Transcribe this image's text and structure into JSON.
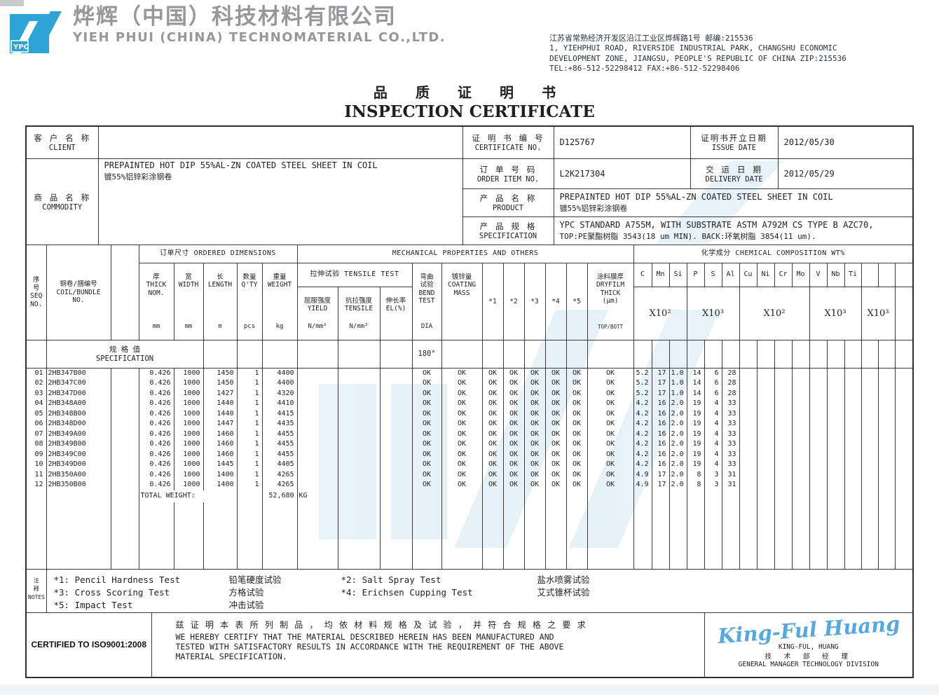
{
  "brand": {
    "logo_text": "YPC",
    "company_cn": "烨辉（中国）科技材料有限公司",
    "company_en": "YIEH PHUI (CHINA) TECHNOMATERIAL CO.,LTD.",
    "address_lines": [
      "江苏省常熟经济开发区沿江工业区烨辉路1号 邮编:215536",
      "1, YIEHPHUI ROAD, RIVERSIDE INDUSTRIAL PARK, CHANGSHU ECONOMIC",
      "DEVELOPMENT ZONE, JIANGSU, PEOPLE'S REPUBLIC OF CHINA ZIP:215536",
      "TEL:+86-512-52298412  FAX:+86-512-52298406"
    ]
  },
  "title": {
    "cn": "品 质 证 明 书",
    "en": "INSPECTION CERTIFICATE"
  },
  "info": {
    "client": {
      "cn": "客 户 名 称",
      "en": "CLIENT",
      "value": ""
    },
    "commodity": {
      "cn": "商 品 名 称",
      "en": "COMMODITY",
      "line1": "PREPAINTED HOT DIP 55%AL-ZN COATED STEEL SHEET IN COIL",
      "line2": "镀55%铝锌彩涂钢卷"
    },
    "certificate_no": {
      "cn": "证 明 书 编 号",
      "en": "CERTIFICATE NO.",
      "value": "D125767"
    },
    "issue_date": {
      "cn": "证明书开立日期",
      "en": "ISSUE DATE",
      "value": "2012/05/30"
    },
    "order_item_no": {
      "cn": "订 单 号 码",
      "en": "ORDER ITEM NO.",
      "value": "L2K217304"
    },
    "delivery_date": {
      "cn": "交 运 日 期",
      "en": "DELIVERY DATE",
      "value": "2012/05/29"
    },
    "product": {
      "cn": "产 品 名 称",
      "en": "PRODUCT",
      "line1": "PREPAINTED HOT DIP 55%AL-ZN COATED STEEL SHEET IN COIL",
      "line2": "镀55%铝锌彩涂钢卷"
    },
    "specification": {
      "cn": "产 品 规 格",
      "en": "SPECIFICATION",
      "line1": "YPC STANDARD A755M, WITH SUBSTRATE ASTM A792M CS TYPE B AZC70,",
      "line2": "TOP:PE聚酯树脂 3543(18 um MIN).  BACK:环氧树脂 3854(11 um)."
    }
  },
  "table": {
    "groups": {
      "ordered_dims": "订单尺寸 ORDERED DIMENSIONS",
      "mechanical": "MECHANICAL PROPERTIES AND OTHERS",
      "chemical": "化学成分 CHEMICAL COMPOSITION WT%",
      "tensile_test": "拉伸试验 TENSILE TEST"
    },
    "headers": {
      "seq": "序\n号\nSEQ\nNO.",
      "coil": "钢卷/捆编号\nCOIL/BUNDLE\nNO.",
      "thick": {
        "top": "厚\nTHICK\nNOM.",
        "unit": "mm"
      },
      "width": {
        "top": "宽\nWIDTH",
        "unit": "mm"
      },
      "length": {
        "top": "长\nLENGTH",
        "unit": "m"
      },
      "qty": {
        "top": "数量\nQ'TY",
        "unit": "pcs"
      },
      "weight": {
        "top": "重量\nWEIGHT",
        "unit": "kg"
      },
      "yield": {
        "top": "屈服强度\nYIELD",
        "unit": "N/mm²"
      },
      "tensile": {
        "top": "抗拉强度\nTENSILE",
        "unit": "N/mm²"
      },
      "el": {
        "top": "伸长率\nEL(%)",
        "unit": ""
      },
      "bend": {
        "top": "弯曲\n试验\nBEND\nTEST",
        "unit": "DIA"
      },
      "coating": {
        "top": "镀锌量\nCOATING\nMASS",
        "unit": ""
      },
      "stars": [
        "*1",
        "*2",
        "*3",
        "*4",
        "*5"
      ],
      "dryfilm": {
        "top": "涂料膜厚\nDRYFILM\nTHICK\n(μm)",
        "unit": "TOP/BOTT"
      }
    },
    "chem": {
      "elements": [
        "C",
        "Mn",
        "Si",
        "P",
        "S",
        "Al",
        "Cu",
        "Ni",
        "Cr",
        "Mo",
        "V",
        "Nb",
        "Ti",
        "",
        "",
        ""
      ],
      "multipliers": [
        {
          "span": 3,
          "label": "X10²"
        },
        {
          "span": 3,
          "label": "X10³"
        },
        {
          "span": 4,
          "label": "X10²"
        },
        {
          "span": 3,
          "label": "X10³"
        },
        {
          "span": 2,
          "label": "X10³"
        },
        {
          "span": 1,
          "label": ""
        }
      ]
    },
    "spec_row": {
      "label": "规 格 值\nSPECIFICATION",
      "bend_value": "180°"
    },
    "row_fields": [
      "seq",
      "coil_no",
      "thick",
      "width",
      "length",
      "qty",
      "weight",
      "bend",
      "coating",
      "star1",
      "star2",
      "star3",
      "star4",
      "star5",
      "dryfilm",
      "C",
      "Mn",
      "Si",
      "P",
      "S",
      "Al"
    ],
    "rows": [
      [
        "01",
        "2HB347B00",
        "0.426",
        "1000",
        "1450",
        "1",
        "4400",
        "OK",
        "OK",
        "OK",
        "OK",
        "OK",
        "OK",
        "OK",
        "OK",
        "5.2",
        "17",
        "1.0",
        "14",
        "6",
        "28"
      ],
      [
        "02",
        "2HB347C00",
        "0.426",
        "1000",
        "1450",
        "1",
        "4400",
        "OK",
        "OK",
        "OK",
        "OK",
        "OK",
        "OK",
        "OK",
        "OK",
        "5.2",
        "17",
        "1.0",
        "14",
        "6",
        "28"
      ],
      [
        "03",
        "2HB347D00",
        "0.426",
        "1000",
        "1427",
        "1",
        "4320",
        "OK",
        "OK",
        "OK",
        "OK",
        "OK",
        "OK",
        "OK",
        "OK",
        "5.2",
        "17",
        "1.0",
        "14",
        "6",
        "28"
      ],
      [
        "04",
        "2HB348A00",
        "0.426",
        "1000",
        "1440",
        "1",
        "4410",
        "OK",
        "OK",
        "OK",
        "OK",
        "OK",
        "OK",
        "OK",
        "OK",
        "4.2",
        "16",
        "2.0",
        "19",
        "4",
        "33"
      ],
      [
        "05",
        "2HB348B00",
        "0.426",
        "1000",
        "1440",
        "1",
        "4415",
        "OK",
        "OK",
        "OK",
        "OK",
        "OK",
        "OK",
        "OK",
        "OK",
        "4.2",
        "16",
        "2.0",
        "19",
        "4",
        "33"
      ],
      [
        "06",
        "2HB348D00",
        "0.426",
        "1000",
        "1447",
        "1",
        "4435",
        "OK",
        "OK",
        "OK",
        "OK",
        "OK",
        "OK",
        "OK",
        "OK",
        "4.2",
        "16",
        "2.0",
        "19",
        "4",
        "33"
      ],
      [
        "07",
        "2HB349A00",
        "0.426",
        "1000",
        "1460",
        "1",
        "4455",
        "OK",
        "OK",
        "OK",
        "OK",
        "OK",
        "OK",
        "OK",
        "OK",
        "4.2",
        "16",
        "2.0",
        "19",
        "4",
        "33"
      ],
      [
        "08",
        "2HB349B00",
        "0.426",
        "1000",
        "1460",
        "1",
        "4455",
        "OK",
        "OK",
        "OK",
        "OK",
        "OK",
        "OK",
        "OK",
        "OK",
        "4.2",
        "16",
        "2.0",
        "19",
        "4",
        "33"
      ],
      [
        "09",
        "2HB349C00",
        "0.426",
        "1000",
        "1460",
        "1",
        "4455",
        "OK",
        "OK",
        "OK",
        "OK",
        "OK",
        "OK",
        "OK",
        "OK",
        "4.2",
        "16",
        "2.0",
        "19",
        "4",
        "33"
      ],
      [
        "10",
        "2HB349D00",
        "0.426",
        "1000",
        "1445",
        "1",
        "4405",
        "OK",
        "OK",
        "OK",
        "OK",
        "OK",
        "OK",
        "OK",
        "OK",
        "4.2",
        "16",
        "2.0",
        "19",
        "4",
        "33"
      ],
      [
        "11",
        "2HB350A00",
        "0.426",
        "1000",
        "1400",
        "1",
        "4265",
        "OK",
        "OK",
        "OK",
        "OK",
        "OK",
        "OK",
        "OK",
        "OK",
        "4.9",
        "17",
        "2.0",
        "8",
        "3",
        "31"
      ],
      [
        "12",
        "2HB350B00",
        "0.426",
        "1000",
        "1400",
        "1",
        "4265",
        "OK",
        "OK",
        "OK",
        "OK",
        "OK",
        "OK",
        "OK",
        "OK",
        "4.9",
        "17",
        "2.0",
        "8",
        "3",
        "31"
      ]
    ],
    "total": {
      "label": "TOTAL WEIGHT:",
      "value": "52,680",
      "unit": "KG"
    }
  },
  "notes": {
    "label": "注\n释\nNOTES",
    "items": [
      [
        "*1: Pencil Hardness Test",
        "铅笔硬度试验",
        "*2: Salt Spray Test",
        "盐水喷雾试验"
      ],
      [
        "*3: Cross Scoring Test",
        "方格试验",
        "*4: Erichsen Cupping Test",
        "艾式锥杯试验"
      ],
      [
        "*5: Impact Test",
        "冲击试验",
        "",
        ""
      ]
    ]
  },
  "footer": {
    "iso": "CERTIFIED TO ISO9001:2008",
    "certify_cn": "兹 证 明 本 表 所 列 制 品 ， 均 依 材 料 规 格 及 试 验 ， 并 符 合 规 格 之 要 求",
    "certify_en1": "WE HEREBY CERTIFY THAT THE MATERIAL  DESCRIBED  HEREIN  HAS  BEEN  MANUFACTURED  AND",
    "certify_en2": "TESTED WITH SATISFACTORY RESULTS IN ACCORDANCE WITH THE REQUIREMENT  OF  THE  ABOVE",
    "certify_en3": "MATERIAL SPECIFICATION.",
    "signature_script": "King-Ful Huang",
    "signer_name": "KING-FUL, HUANG",
    "signer_title_cn": "技 术 部 经 理",
    "signer_title_en": "GENERAL MANAGER TECHNOLOGY DIVISION"
  },
  "colors": {
    "logo_blue": "#2ea3d6",
    "signature_blue": "#57a7e0",
    "watermark_blue": "#cfe6f3",
    "company_gray": "#97979a"
  }
}
